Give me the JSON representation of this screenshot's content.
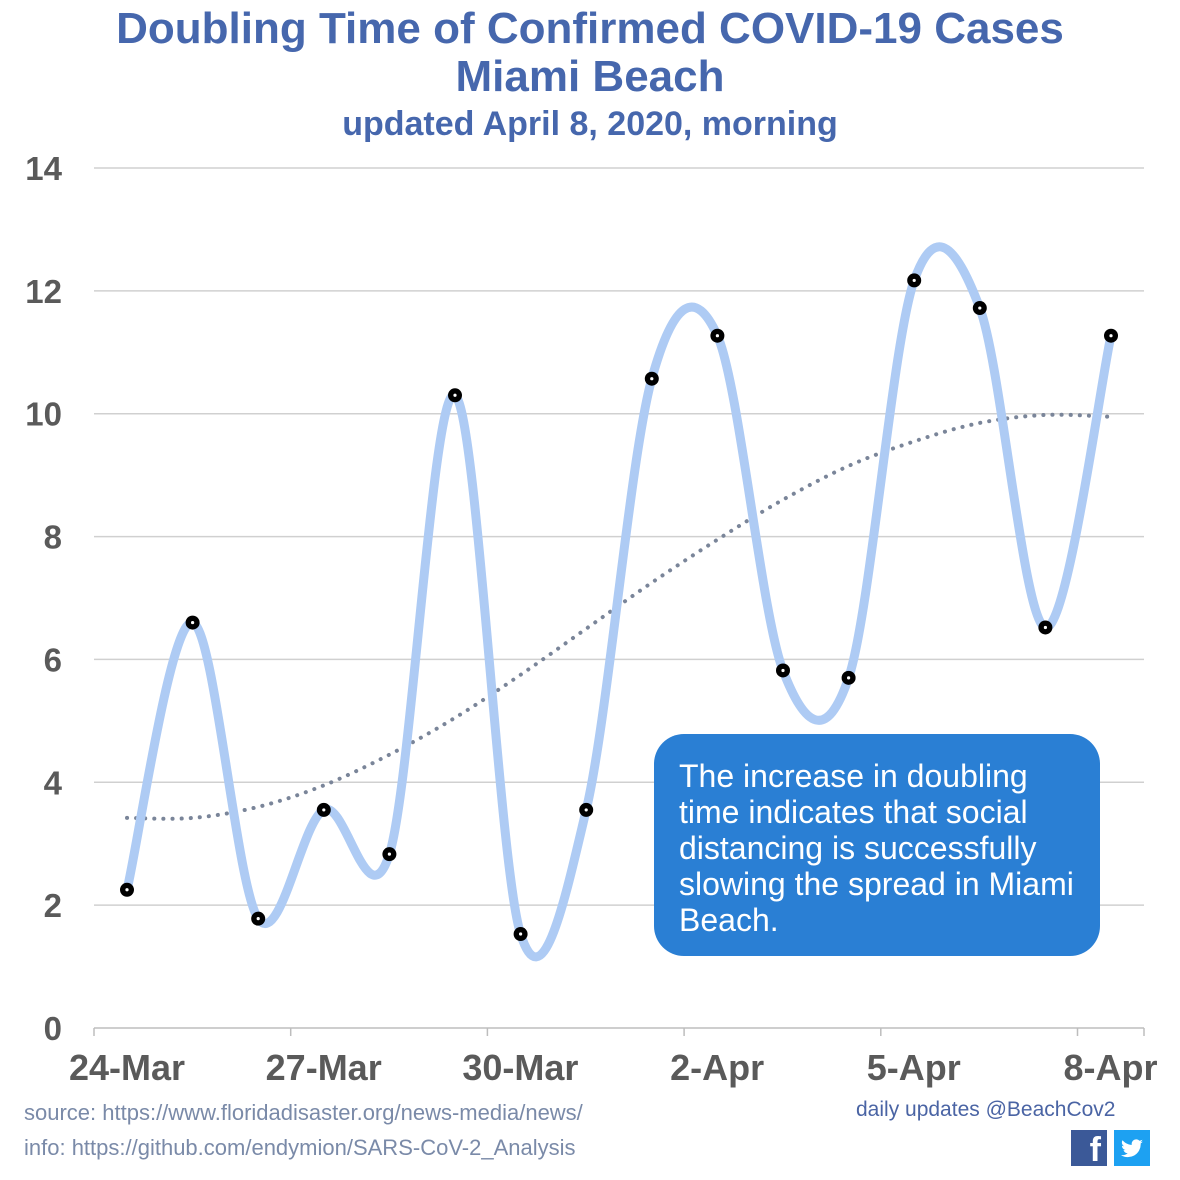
{
  "title_line1": "Doubling Time of Confirmed COVID-19 Cases",
  "title_line2": "Miami Beach",
  "subtitle": "updated April 8, 2020, morning",
  "callout_text": "The increase in doubling time indicates that social distancing is successfully slowing the spread in Miami Beach.",
  "footer": {
    "source": "source: https://www.floridadisaster.org/news-media/news/",
    "info": "info: https://github.com/endymion/SARS-CoV-2_Analysis",
    "updates": "daily updates @BeachCov2",
    "facebook_glyph": "f",
    "icons": [
      "facebook-icon",
      "twitter-icon"
    ]
  },
  "colors": {
    "title": "#4667ad",
    "series_line": "#aecbf4",
    "point": "#000000",
    "trend": "#7a8599",
    "callout_bg": "#2a7fd4",
    "grid": "#d0d0d0"
  },
  "chart_data": {
    "type": "line",
    "title": "Doubling Time of Confirmed COVID-19 Cases Miami Beach",
    "subtitle": "updated April 8, 2020, morning",
    "xlabel": "",
    "ylabel": "",
    "x": [
      "24-Mar",
      "25-Mar",
      "26-Mar",
      "27-Mar",
      "28-Mar",
      "29-Mar",
      "30-Mar",
      "31-Mar",
      "1-Apr",
      "2-Apr",
      "3-Apr",
      "4-Apr",
      "5-Apr",
      "6-Apr",
      "7-Apr",
      "8-Apr"
    ],
    "series": [
      {
        "values": [
          2.25,
          6.6,
          1.78,
          3.55,
          2.83,
          10.3,
          1.53,
          3.55,
          10.57,
          11.27,
          5.82,
          5.7,
          12.17,
          11.72,
          6.52,
          11.27
        ],
        "smooth": true
      },
      {
        "style": "dotted-trendline",
        "values": [
          3.42,
          3.42,
          3.6,
          3.95,
          4.45,
          5.05,
          5.75,
          6.5,
          7.25,
          7.95,
          8.6,
          9.15,
          9.55,
          9.85,
          9.98,
          9.95
        ]
      }
    ],
    "x_tick_labels": [
      "24-Mar",
      "27-Mar",
      "30-Mar",
      "2-Apr",
      "5-Apr",
      "8-Apr"
    ],
    "y_ticks": [
      0,
      2,
      4,
      6,
      8,
      10,
      12,
      14
    ],
    "ylim": [
      0,
      14
    ],
    "grid": true,
    "legend": "none"
  }
}
